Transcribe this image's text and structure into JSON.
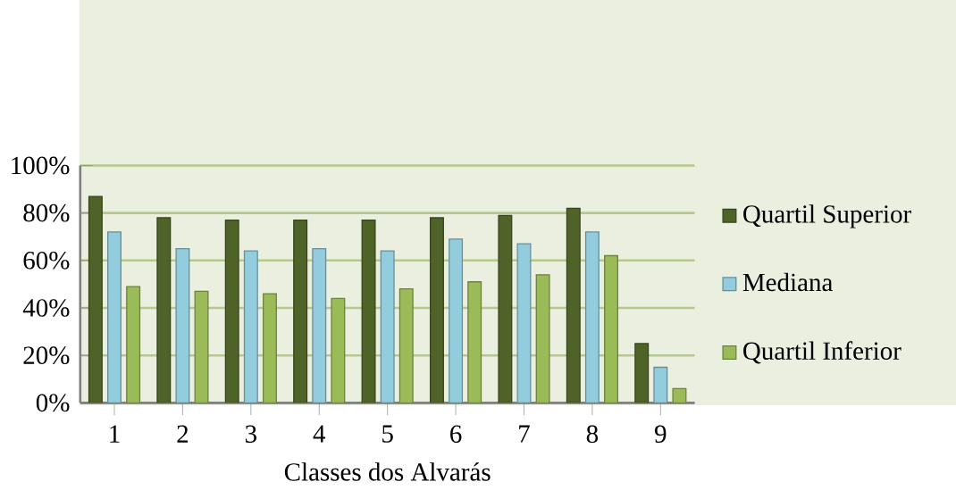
{
  "chart_data": {
    "type": "bar",
    "xlabel": "Classes dos Alvarás",
    "categories": [
      "1",
      "2",
      "3",
      "4",
      "5",
      "6",
      "7",
      "8",
      "9"
    ],
    "series": [
      {
        "name": "Quartil Superior",
        "color": "#4f6228",
        "values": [
          87,
          78,
          77,
          77,
          77,
          78,
          79,
          82,
          25
        ]
      },
      {
        "name": "Mediana",
        "color": "#93cddd",
        "values": [
          72,
          65,
          64,
          65,
          64,
          69,
          67,
          72,
          15
        ]
      },
      {
        "name": "Quartil Inferior",
        "color": "#9bbb59",
        "values": [
          49,
          47,
          46,
          44,
          48,
          51,
          54,
          62,
          6
        ]
      }
    ],
    "ylim": [
      0,
      100
    ],
    "yticks": [
      {
        "value": 0,
        "label": "0%"
      },
      {
        "value": 20,
        "label": "20%"
      },
      {
        "value": 40,
        "label": "40%"
      },
      {
        "value": 60,
        "label": "60%"
      },
      {
        "value": 80,
        "label": "80%"
      },
      {
        "value": 100,
        "label": "100%"
      }
    ],
    "grid": "y",
    "legend": "right"
  }
}
